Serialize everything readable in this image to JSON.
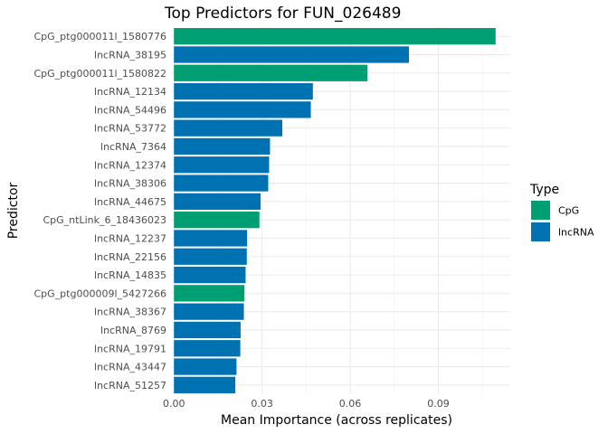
{
  "chart_data": {
    "type": "bar",
    "orientation": "horizontal",
    "title": "Top Predictors for FUN_026489",
    "xlabel": "Mean Importance (across replicates)",
    "ylabel": "Predictor",
    "xlim": [
      -0.001,
      0.1145
    ],
    "xticks": [
      0.0,
      0.03,
      0.06,
      0.09
    ],
    "xtick_labels": [
      "0.00",
      "0.03",
      "0.06",
      "0.09"
    ],
    "grid": true,
    "legend": {
      "title": "Type",
      "position": "right",
      "entries": [
        {
          "label": "CpG",
          "color": "#009E73"
        },
        {
          "label": "lncRNA",
          "color": "#0072B2"
        }
      ]
    },
    "bars": [
      {
        "label": "CpG_ptg000011l_1580776",
        "value": 0.1095,
        "type": "CpG"
      },
      {
        "label": "lncRNA_38195",
        "value": 0.08,
        "type": "lncRNA"
      },
      {
        "label": "CpG_ptg000011l_1580822",
        "value": 0.0659,
        "type": "CpG"
      },
      {
        "label": "lncRNA_12134",
        "value": 0.0473,
        "type": "lncRNA"
      },
      {
        "label": "lncRNA_54496",
        "value": 0.0466,
        "type": "lncRNA"
      },
      {
        "label": "lncRNA_53772",
        "value": 0.0369,
        "type": "lncRNA"
      },
      {
        "label": "lncRNA_7364",
        "value": 0.0327,
        "type": "lncRNA"
      },
      {
        "label": "lncRNA_12374",
        "value": 0.0324,
        "type": "lncRNA"
      },
      {
        "label": "lncRNA_38306",
        "value": 0.0321,
        "type": "lncRNA"
      },
      {
        "label": "lncRNA_44675",
        "value": 0.0295,
        "type": "lncRNA"
      },
      {
        "label": "CpG_ntLink_6_18436023",
        "value": 0.0291,
        "type": "CpG"
      },
      {
        "label": "lncRNA_12237",
        "value": 0.0249,
        "type": "lncRNA"
      },
      {
        "label": "lncRNA_22156",
        "value": 0.0248,
        "type": "lncRNA"
      },
      {
        "label": "lncRNA_14835",
        "value": 0.0244,
        "type": "lncRNA"
      },
      {
        "label": "CpG_ptg000009l_5427266",
        "value": 0.024,
        "type": "CpG"
      },
      {
        "label": "lncRNA_38367",
        "value": 0.0238,
        "type": "lncRNA"
      },
      {
        "label": "lncRNA_8769",
        "value": 0.0227,
        "type": "lncRNA"
      },
      {
        "label": "lncRNA_19791",
        "value": 0.0226,
        "type": "lncRNA"
      },
      {
        "label": "lncRNA_43447",
        "value": 0.0213,
        "type": "lncRNA"
      },
      {
        "label": "lncRNA_51257",
        "value": 0.0209,
        "type": "lncRNA"
      }
    ]
  }
}
